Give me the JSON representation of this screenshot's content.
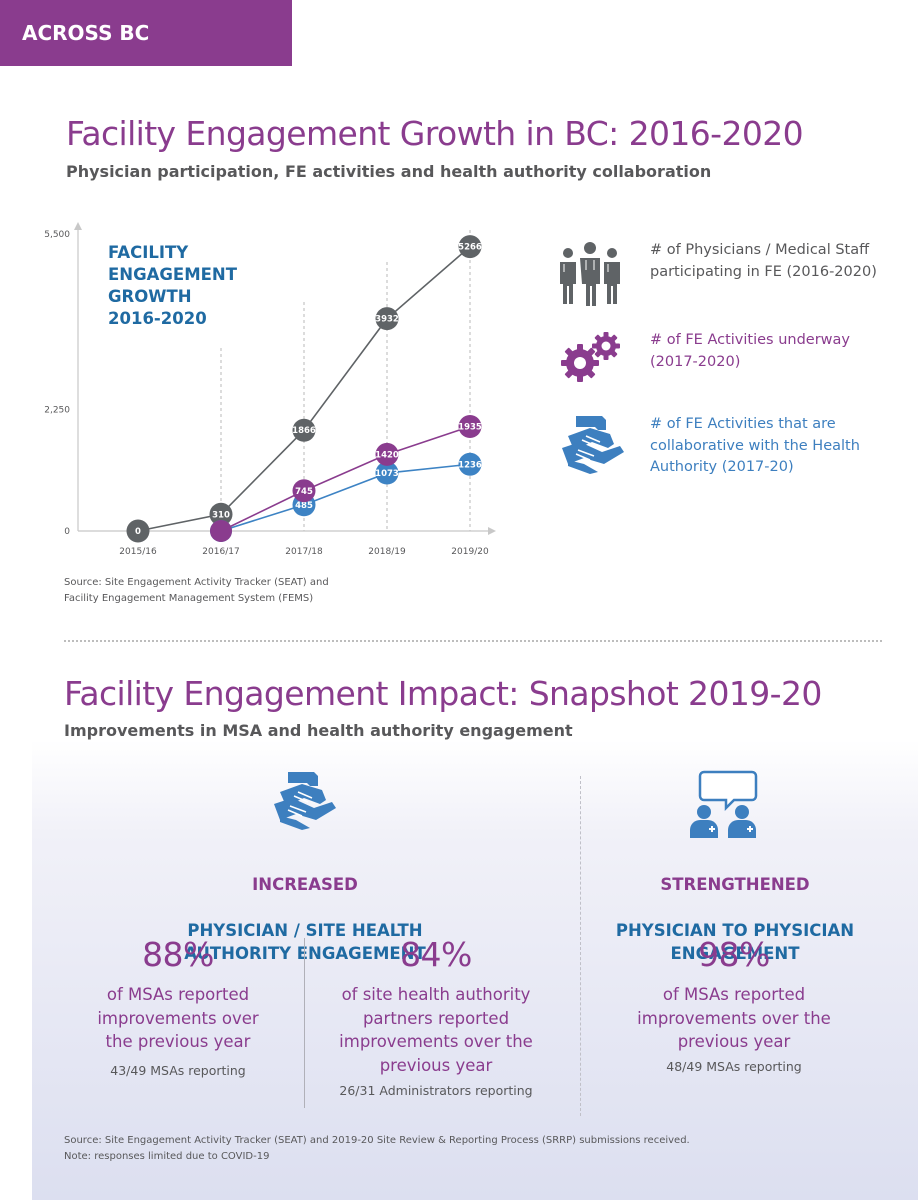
{
  "banner": "ACROSS BC",
  "section1": {
    "title": "Facility Engagement Growth in BC: 2016-2020",
    "subtitle": "Physician participation, FE activities and health authority collaboration",
    "chart_inset_title": "FACILITY\nENGAGEMENT\nGROWTH\n2016-2020",
    "source": "Source:  Site Engagement Activity Tracker (SEAT) and\nFacility Engagement Management System (FEMS)",
    "legend": [
      {
        "icon": "physicians-group-icon",
        "label": "# of Physicians / Medical Staff participating in FE (2016-2020)",
        "color": "#58585a"
      },
      {
        "icon": "gears-icon",
        "label": "# of FE Activities underway (2017-2020)",
        "color": "#8a3c8e"
      },
      {
        "icon": "stacked-hands-icon",
        "label": "# of FE Activities that are collaborative with the Health Authority (2017-20)",
        "color": "#3d7fbf"
      }
    ]
  },
  "chart_data": {
    "type": "line",
    "categories": [
      "2015/16",
      "2016/17",
      "2017/18",
      "2018/19",
      "2019/20"
    ],
    "y_ticks": [
      "0",
      "2,250",
      "5,500"
    ],
    "y_tick_values": [
      0,
      2250,
      5500
    ],
    "ylim": [
      0,
      5500
    ],
    "grid": "dashed vertical at categories 2016/17 to 2019/20",
    "series": [
      {
        "icon": "physicians-group-icon",
        "color": "#5f6366",
        "values": [
          0,
          310,
          1866,
          3932,
          5266
        ],
        "labels": [
          "0",
          "310",
          "1866",
          "3932",
          "5266"
        ]
      },
      {
        "icon": "gears-icon",
        "color": "#8a3c8e",
        "values": [
          null,
          0,
          745,
          1420,
          1935
        ],
        "labels": [
          "",
          "",
          "745",
          "1420",
          "1935"
        ]
      },
      {
        "icon": "stacked-hands-icon",
        "color": "#3d83c4",
        "values": [
          null,
          0,
          485,
          1073,
          1236
        ],
        "labels": [
          "",
          "",
          "485",
          "1073",
          "1236"
        ]
      }
    ]
  },
  "section2": {
    "title": "Facility Engagement Impact: Snapshot 2019-20",
    "subtitle": "Improvements in MSA and health authority engagement",
    "panel_left": {
      "icon": "stacked-hands-icon",
      "title_line1": "INCREASED",
      "title_rest": "PHYSICIAN / SITE HEALTH\nAUTHORITY ENGAGEMENT",
      "stats": [
        {
          "pct": "88%",
          "text": "of MSAs reported\nimprovements over\nthe previous year",
          "note": "43/49 MSAs reporting"
        },
        {
          "pct": "84%",
          "text": "of site health authority\npartners reported\nimprovements over the\nprevious year",
          "note": "26/31 Administrators reporting"
        }
      ]
    },
    "panel_right": {
      "icon": "physicians-conversation-icon",
      "title_line1": "STRENGTHENED",
      "title_rest": "PHYSICIAN TO PHYSICIAN\nENGAGEMENT",
      "stats": [
        {
          "pct": "98%",
          "text": "of MSAs reported\nimprovements over the\nprevious year",
          "note": "48/49 MSAs reporting"
        }
      ]
    },
    "source": "Source: Site Engagement Activity Tracker (SEAT) and 2019-20 Site Review & Reporting Process (SRRP) submissions received.\nNote: responses limited due to COVID-19"
  },
  "colors": {
    "purple": "#8a3c8e",
    "blue": "#1f6aa2",
    "grey": "#58585a",
    "light_blue": "#3d83c4"
  }
}
